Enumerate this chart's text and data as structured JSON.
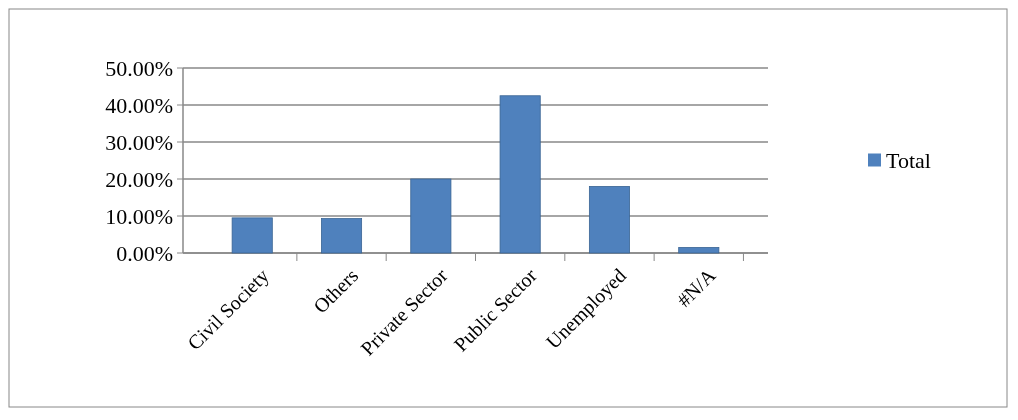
{
  "chart_data": {
    "type": "bar",
    "categories": [
      "Civil Society",
      "Others",
      "Private Sector",
      "Public Sector",
      "Unemployed",
      "#N/A"
    ],
    "series": [
      {
        "name": "Total",
        "color": "#4f81bd",
        "values": [
          0.095,
          0.093,
          0.2,
          0.425,
          0.18,
          0.015
        ]
      }
    ],
    "ylim": [
      0,
      0.5
    ],
    "yticks": [
      {
        "value": 0,
        "label": "0.00%"
      },
      {
        "value": 0.1,
        "label": "10.00%"
      },
      {
        "value": 0.2,
        "label": "20.00%"
      },
      {
        "value": 0.3,
        "label": "30.00%"
      },
      {
        "value": 0.4,
        "label": "40.00%"
      },
      {
        "value": 0.5,
        "label": "50.00%"
      }
    ],
    "grid": "y",
    "legend": "right"
  }
}
